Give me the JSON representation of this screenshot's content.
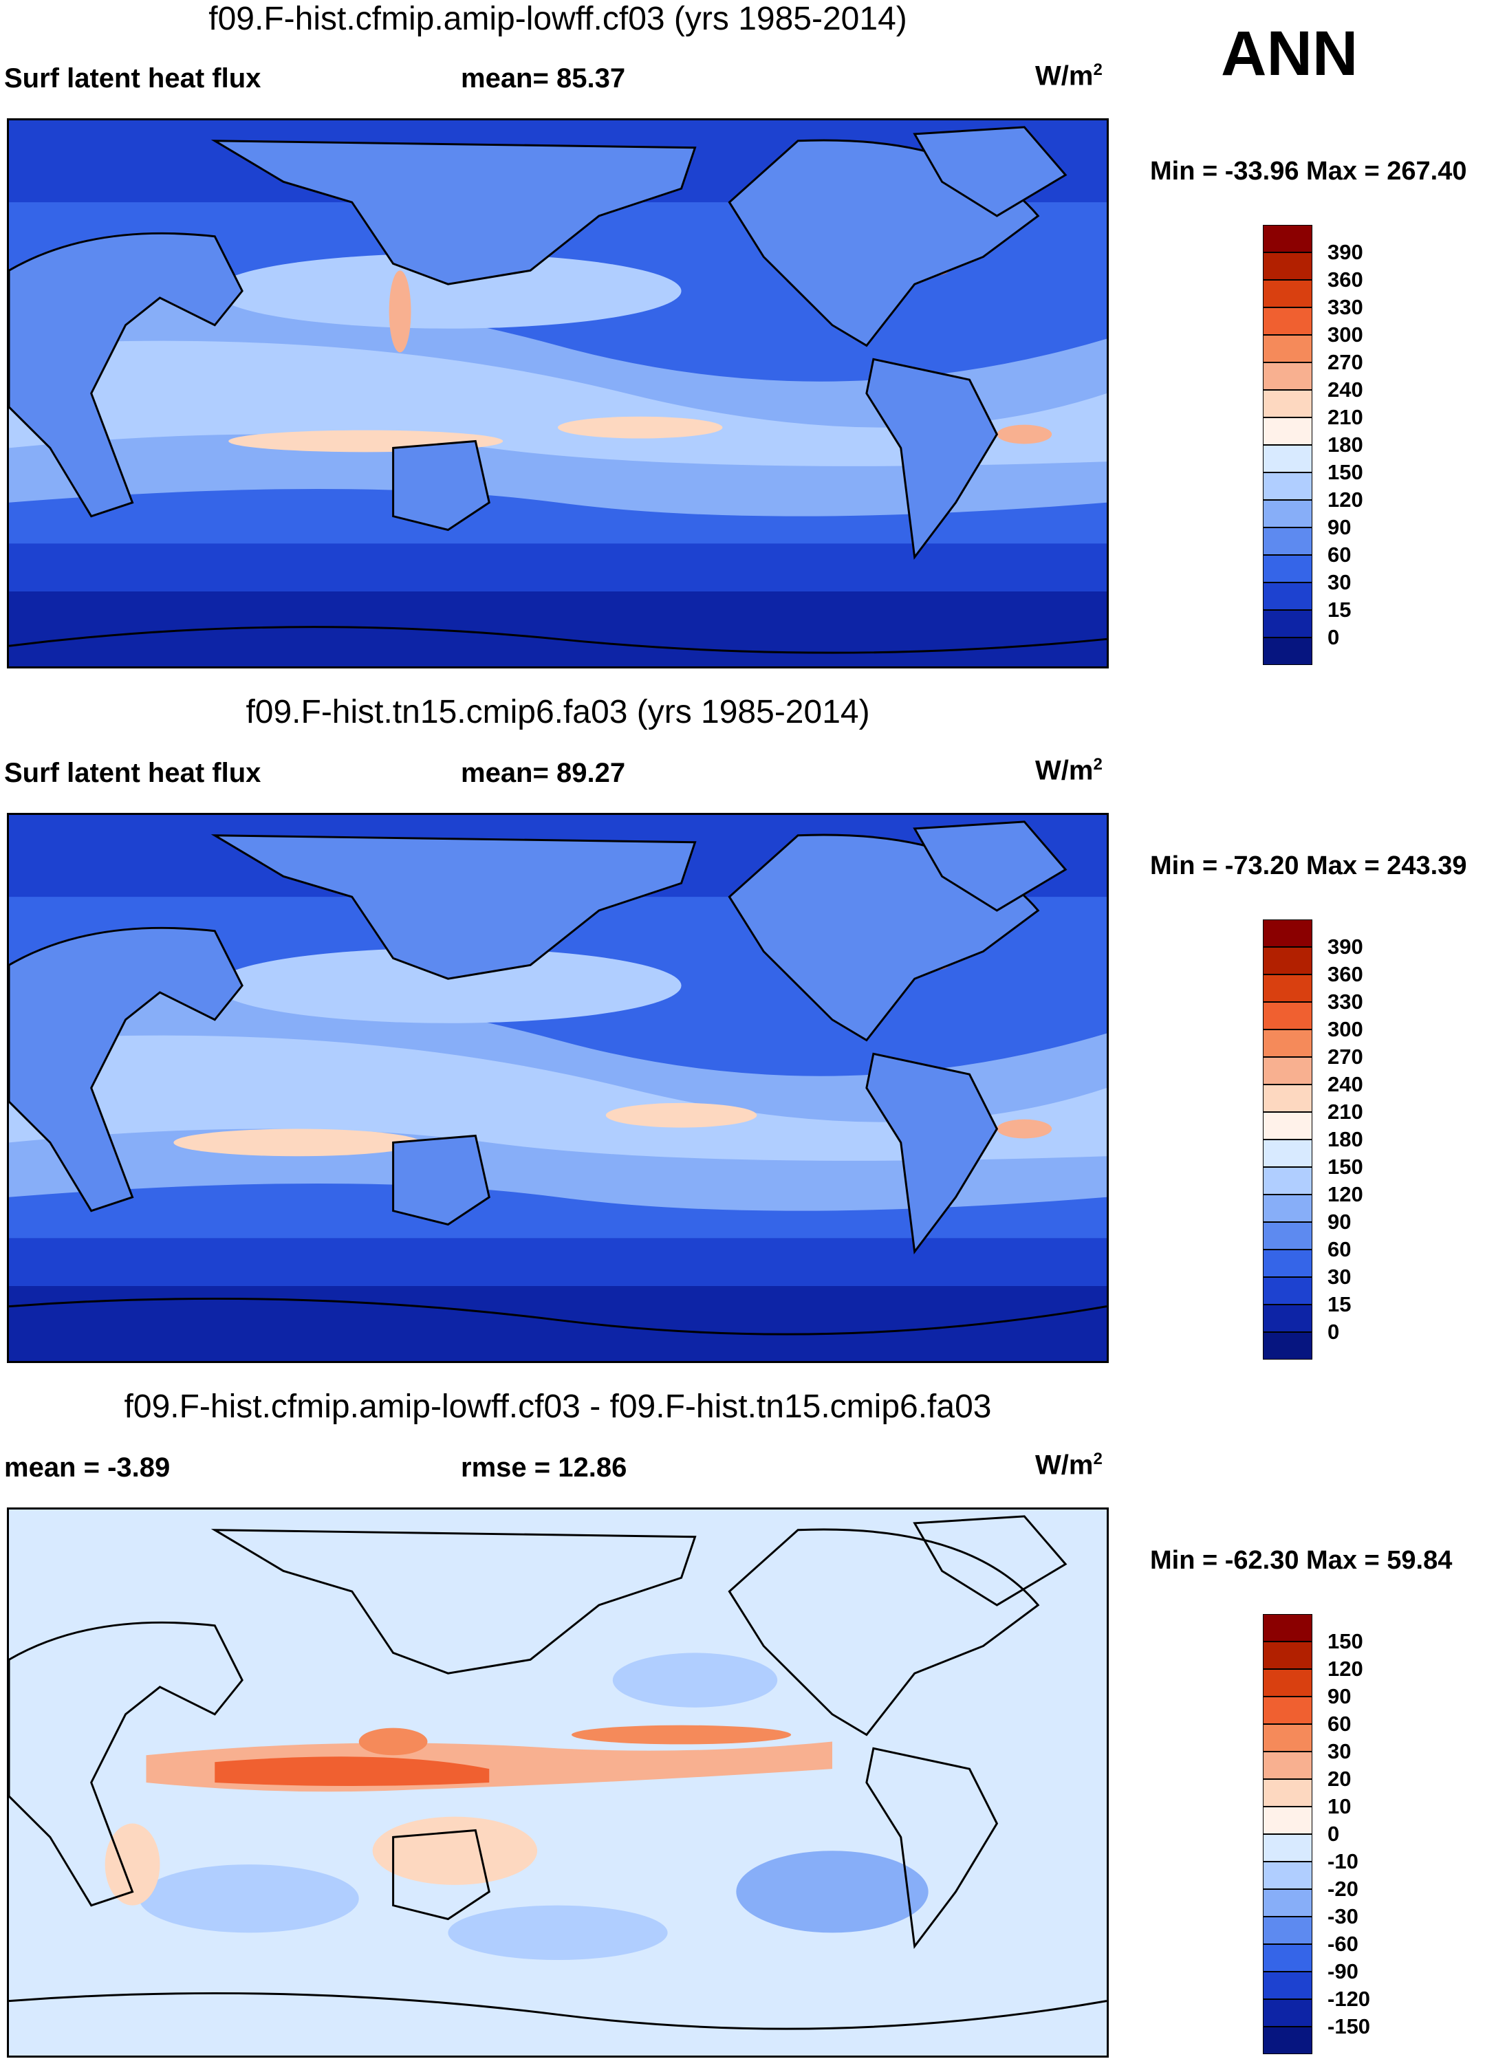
{
  "season": "ANN",
  "panels": [
    {
      "title": "f09.F-hist.cfmip.amip-lowff.cf03 (yrs 1985-2014)",
      "left_label": "Surf latent heat flux",
      "stat_label": "mean=  85.37",
      "units": "W/m",
      "units_sup": "2",
      "min_max": "Min = -33.96 Max = 267.40",
      "colorbar": {
        "levels": [
          "390",
          "360",
          "330",
          "300",
          "270",
          "240",
          "210",
          "180",
          "150",
          "120",
          "90",
          "60",
          "30",
          "15",
          "0"
        ],
        "colors": [
          "#8b0000",
          "#b22000",
          "#d94010",
          "#f06030",
          "#f58a5a",
          "#f8b090",
          "#fdd8c0",
          "#fff2ea",
          "#d8eaff",
          "#b0ceff",
          "#87aef8",
          "#5d8af0",
          "#3565e8",
          "#1d42d0",
          "#0d24a6",
          "#061580"
        ]
      }
    },
    {
      "title": "f09.F-hist.tn15.cmip6.fa03 (yrs 1985-2014)",
      "left_label": "Surf latent heat flux",
      "stat_label": "mean=  89.27",
      "units": "W/m",
      "units_sup": "2",
      "min_max": "Min = -73.20 Max = 243.39",
      "colorbar": {
        "levels": [
          "390",
          "360",
          "330",
          "300",
          "270",
          "240",
          "210",
          "180",
          "150",
          "120",
          "90",
          "60",
          "30",
          "15",
          "0"
        ],
        "colors": [
          "#8b0000",
          "#b22000",
          "#d94010",
          "#f06030",
          "#f58a5a",
          "#f8b090",
          "#fdd8c0",
          "#fff2ea",
          "#d8eaff",
          "#b0ceff",
          "#87aef8",
          "#5d8af0",
          "#3565e8",
          "#1d42d0",
          "#0d24a6",
          "#061580"
        ]
      }
    },
    {
      "title": "f09.F-hist.cfmip.amip-lowff.cf03 - f09.F-hist.tn15.cmip6.fa03",
      "left_label": "mean =  -3.89",
      "stat_label": "rmse =  12.86",
      "units": "W/m",
      "units_sup": "2",
      "min_max": "Min = -62.30 Max =  59.84",
      "colorbar": {
        "levels": [
          "150",
          "120",
          "90",
          "60",
          "30",
          "20",
          "10",
          "0",
          "-10",
          "-20",
          "-30",
          "-60",
          "-90",
          "-120",
          "-150"
        ],
        "colors": [
          "#8b0000",
          "#b22000",
          "#d94010",
          "#f06030",
          "#f58a5a",
          "#f8b090",
          "#fdd8c0",
          "#fff2ea",
          "#d8eaff",
          "#b0ceff",
          "#87aef8",
          "#5d8af0",
          "#3565e8",
          "#1d42d0",
          "#0d24a6",
          "#061580"
        ]
      }
    }
  ]
}
